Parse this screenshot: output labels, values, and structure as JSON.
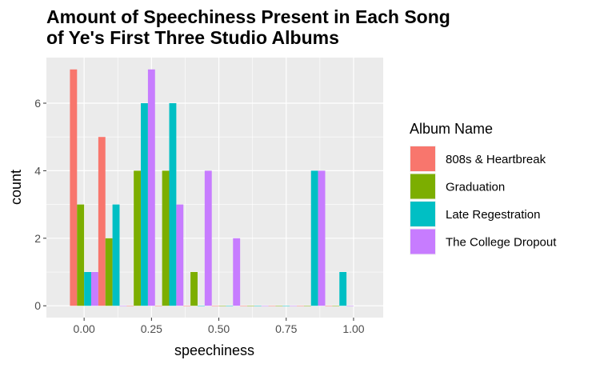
{
  "chart_data": {
    "type": "bar",
    "title_lines": [
      "Amount of Speechiness Present in Each Song",
      "of Ye's First Three Studio Albums"
    ],
    "xlabel": "speechiness",
    "ylabel": "count",
    "xlim": [
      -0.14,
      1.11
    ],
    "ylim": [
      -0.35,
      7.35
    ],
    "x_ticks": [
      0.0,
      0.25,
      0.5,
      0.75,
      1.0
    ],
    "x_tick_labels": [
      "0.00",
      "0.25",
      "0.50",
      "0.75",
      "1.00"
    ],
    "y_ticks": [
      0,
      2,
      4,
      6
    ],
    "y_tick_labels": [
      "0",
      "2",
      "4",
      "6"
    ],
    "bin_width": 0.1053,
    "grid": true,
    "legend": {
      "title": "Album Name",
      "position": "right",
      "entries": [
        "808s & Heartbreak",
        "Graduation",
        "Late Regestration",
        "The College Dropout"
      ]
    },
    "series": [
      {
        "name": "808s & Heartbreak",
        "color": "#F8766D",
        "values": [
          7,
          5,
          0,
          0,
          0,
          0,
          0,
          0,
          0,
          0
        ]
      },
      {
        "name": "Graduation",
        "color": "#7CAE00",
        "values": [
          3,
          2,
          4,
          4,
          1,
          0,
          0,
          0,
          0,
          0
        ]
      },
      {
        "name": "Late Regestration",
        "color": "#00BFC4",
        "values": [
          1,
          3,
          6,
          6,
          0,
          0,
          0,
          0,
          4,
          1
        ]
      },
      {
        "name": "The College Dropout",
        "color": "#C77CFF",
        "values": [
          1,
          0,
          7,
          3,
          4,
          2,
          0,
          0,
          4,
          0
        ]
      }
    ],
    "bin_centers": [
      0.0,
      0.1053,
      0.2105,
      0.3158,
      0.4211,
      0.5263,
      0.6316,
      0.7368,
      0.8421,
      0.9474
    ]
  }
}
